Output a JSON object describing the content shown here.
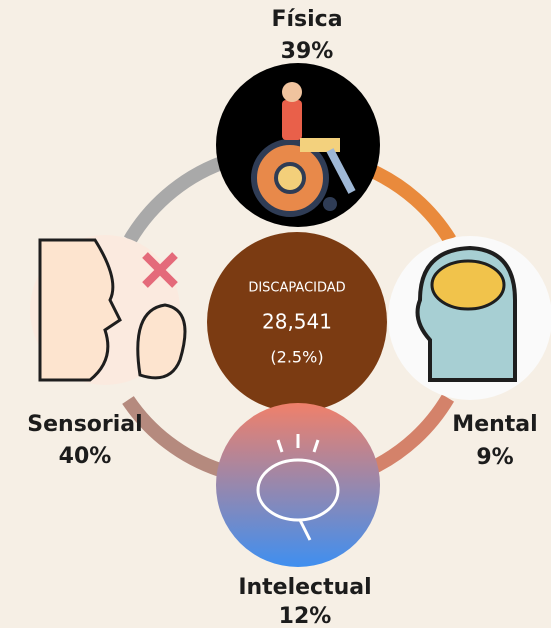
{
  "center": {
    "label": "DISCAPACIDAD",
    "value": "28,541",
    "share": "(2.5%)"
  },
  "items": [
    {
      "label": "Física",
      "percent": "39%"
    },
    {
      "label": "Mental",
      "percent": "9%"
    },
    {
      "label": "Intelectual",
      "percent": "12%"
    },
    {
      "label": "Sensorial",
      "percent": "40%"
    }
  ]
}
